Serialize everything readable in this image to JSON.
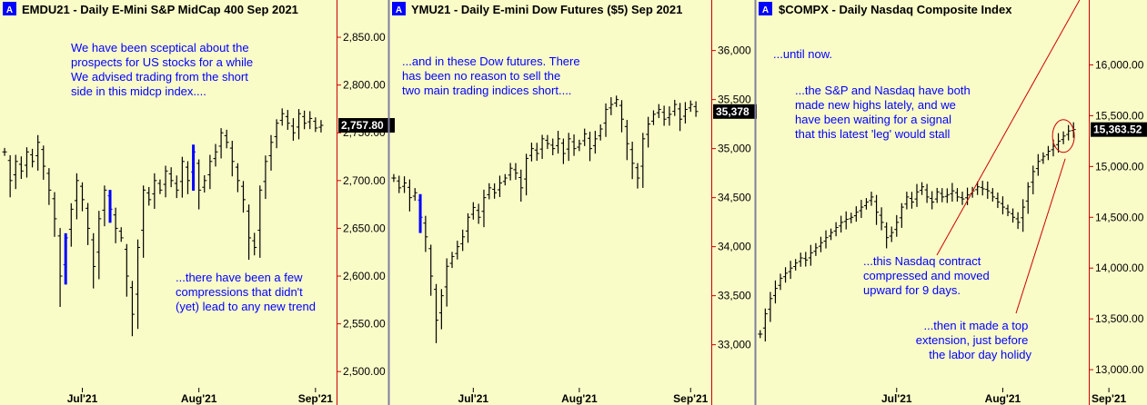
{
  "colors": {
    "background": "#fafcc8",
    "panel_border": "#cc0000",
    "bar": "#000000",
    "highlight_bar": "#0000ff",
    "annotation_text": "#0000ff",
    "badge": "#0000ff",
    "last_price_box": "#000000"
  },
  "chart_data": [
    {
      "type": "ohlc",
      "badge": "A",
      "title": "EMDU21 - Daily  E-Mini S&P MidCap 400 Sep 2021",
      "ylim": [
        2485,
        2870
      ],
      "y_ticks": [
        2500,
        2550,
        2600,
        2650,
        2700,
        2750,
        2800,
        2850
      ],
      "y_tick_labels": [
        "2,500.00",
        "2,550.00",
        "2,600.00",
        "2,650.00",
        "2,700.00",
        "2,750.00",
        "2,800.00",
        "2,850.00"
      ],
      "last_value": 2757.8,
      "last_label": "2,757.80",
      "month_labels": [
        {
          "label": "Jul'21",
          "index": 14
        },
        {
          "label": "Aug'21",
          "index": 35
        },
        {
          "label": "Sep'21",
          "index": 56
        }
      ],
      "highlight": [
        {
          "start": 11,
          "end": 11
        },
        {
          "start": 19,
          "end": 19
        },
        {
          "start": 34,
          "end": 34
        }
      ],
      "closes": [
        2730,
        2700,
        2720,
        2710,
        2730,
        2720,
        2740,
        2715,
        2690,
        2660,
        2600,
        2640,
        2670,
        2700,
        2680,
        2650,
        2610,
        2660,
        2690,
        2670,
        2650,
        2640,
        2600,
        2560,
        2630,
        2690,
        2680,
        2700,
        2690,
        2710,
        2700,
        2690,
        2720,
        2700,
        2730,
        2690,
        2700,
        2720,
        2730,
        2750,
        2740,
        2720,
        2700,
        2680,
        2640,
        2630,
        2690,
        2720,
        2740,
        2760,
        2770,
        2760,
        2750,
        2770,
        2760,
        2765,
        2755,
        2757.8
      ],
      "annotations": [
        {
          "lines": [
            "We have been sceptical about the",
            "prospects for US stocks for a while",
            "We advised trading from the short",
            "side in this midcp index...."
          ]
        },
        {
          "lines": [
            "...there have been a few",
            "compressions that didn't",
            "(yet) lead to any new trend"
          ]
        }
      ]
    },
    {
      "type": "ohlc",
      "badge": "A",
      "title": "YMU21 - Daily  E-mini Dow Futures ($5) Sep 2021",
      "ylim": [
        32580,
        36330
      ],
      "y_ticks": [
        33000,
        33500,
        34000,
        34500,
        35000,
        35500,
        36000
      ],
      "y_tick_labels": [
        "33,000",
        "33,500",
        "34,000",
        "34,500",
        "35,000",
        "35,500",
        "36,000"
      ],
      "last_value": 35378,
      "last_label": "35,378",
      "month_labels": [
        {
          "label": "Jul'21",
          "index": 15
        },
        {
          "label": "Aug'21",
          "index": 35
        },
        {
          "label": "Sep'21",
          "index": 56
        }
      ],
      "highlight": [
        {
          "start": 5,
          "end": 5
        }
      ],
      "closes": [
        34700,
        34600,
        34650,
        34500,
        34550,
        34300,
        34100,
        33700,
        33250,
        33500,
        33800,
        33900,
        34000,
        34100,
        34300,
        34400,
        34300,
        34500,
        34600,
        34550,
        34650,
        34700,
        34800,
        34750,
        34600,
        34900,
        35000,
        34950,
        35100,
        35050,
        35000,
        35100,
        34950,
        35100,
        35000,
        35050,
        35150,
        35000,
        35100,
        35200,
        35400,
        35450,
        35500,
        35300,
        35050,
        34850,
        34700,
        35100,
        35250,
        35350,
        35400,
        35300,
        35350,
        35450,
        35300,
        35400,
        35450,
        35378
      ],
      "annotations": [
        {
          "lines": [
            "...and in these Dow futures. There",
            "has been no reason to sell the",
            "two main trading indices short...."
          ]
        }
      ]
    },
    {
      "type": "ohlc",
      "badge": "A",
      "title": "$COMPX - Daily  Nasdaq Composite Index",
      "ylim": [
        12840,
        16460
      ],
      "y_ticks": [
        13000,
        13500,
        14000,
        14500,
        15000,
        15500,
        16000
      ],
      "y_tick_labels": [
        "13,000.00",
        "13,500.00",
        "14,000.00",
        "14,500.00",
        "15,000.00",
        "15,500.00",
        "16,000.00"
      ],
      "last_value": 15363.52,
      "last_label": "15,363.52",
      "month_labels": [
        {
          "label": "Jul'21",
          "index": 27
        },
        {
          "label": "Aug'21",
          "index": 48
        },
        {
          "label": "Sep'21",
          "index": 69
        }
      ],
      "highlight": [
        {
          "start": 65,
          "end": 65
        }
      ],
      "closes": [
        13350,
        13550,
        13700,
        13800,
        13900,
        13950,
        14000,
        14050,
        14100,
        14080,
        14150,
        14200,
        14250,
        14300,
        14350,
        14400,
        14450,
        14480,
        14500,
        14550,
        14600,
        14650,
        14700,
        14550,
        14450,
        14300,
        14350,
        14450,
        14600,
        14700,
        14650,
        14750,
        14800,
        14700,
        14650,
        14750,
        14700,
        14720,
        14760,
        14700,
        14680,
        14720,
        14760,
        14800,
        14780,
        14760,
        14700,
        14650,
        14600,
        14550,
        14500,
        14450,
        14600,
        14800,
        14950,
        15050,
        15100,
        15150,
        15200,
        15250,
        15300,
        15350,
        15363.52
      ],
      "callout_circle_index": 60,
      "annotations": [
        {
          "lines": [
            "...until now."
          ]
        },
        {
          "lines": [
            "...the S&P and Nasdaq have both",
            "made new highs lately, and we",
            "have been waiting for a signal",
            "that this latest 'leg' would stall"
          ]
        },
        {
          "lines": [
            "...this Nasdaq contract",
            "compressed and moved",
            "upward for 9 days."
          ]
        },
        {
          "lines": [
            "...then it made a top",
            "extension, just before",
            "the labor day holidy"
          ]
        }
      ]
    }
  ]
}
